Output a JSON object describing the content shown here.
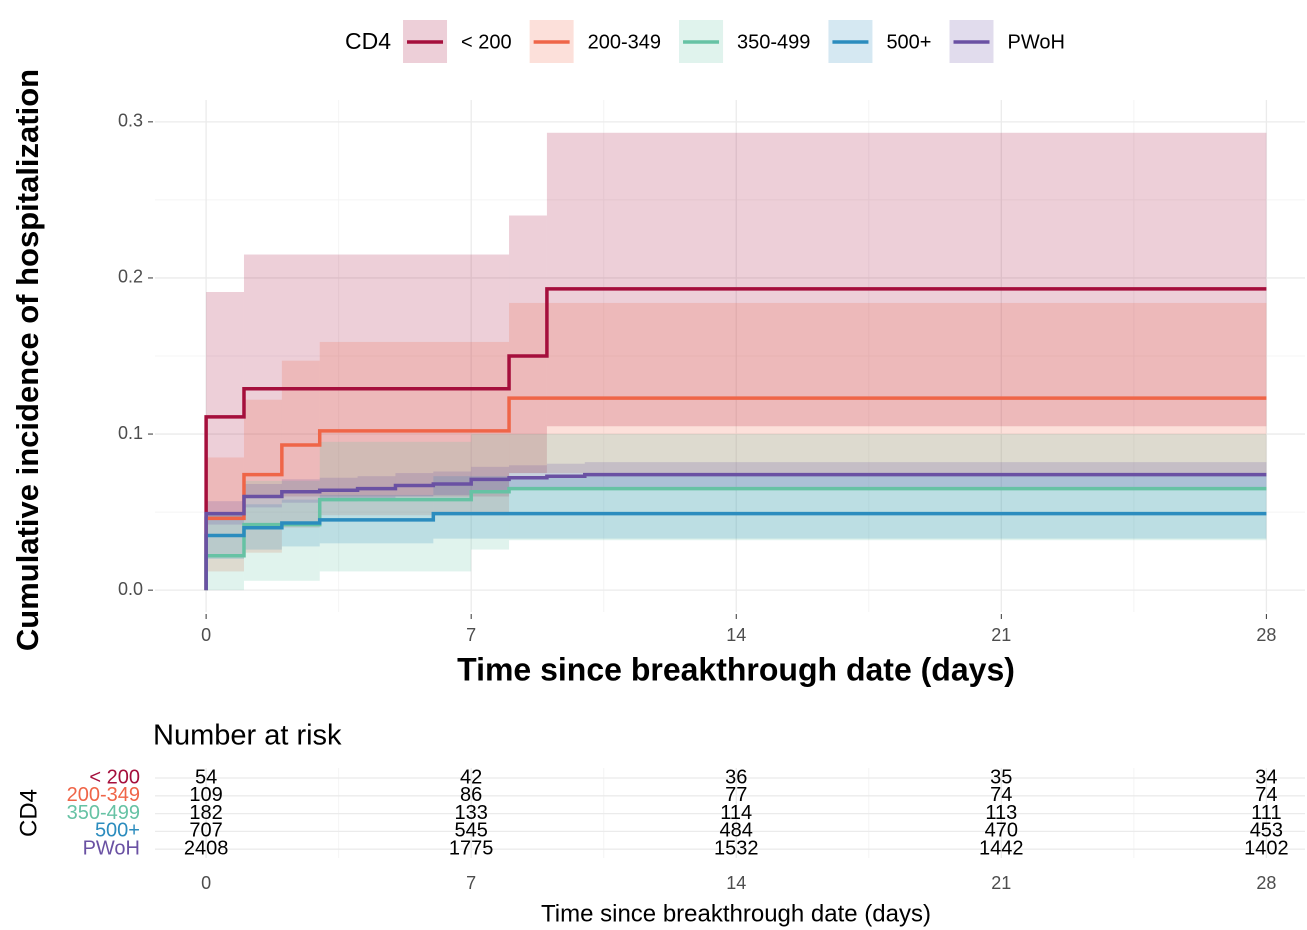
{
  "chart_data": [
    {
      "type": "step",
      "legend_title": "CD4",
      "y_label": "Cumulative incidence of hospitalization",
      "x_label": "Time since breakthrough date (days)",
      "xlim": [
        -1.35,
        29.02
      ],
      "ylim": [
        -0.014,
        0.314
      ],
      "xticks": [
        0,
        7,
        14,
        21,
        28
      ],
      "yticks": [
        {
          "value": 0,
          "label": "0.0"
        },
        0.1,
        0.2,
        0.3
      ],
      "grid": true,
      "series": [
        {
          "name": "< 200",
          "color": "#a50f3c",
          "x": [
            0,
            0,
            1,
            8,
            9,
            28
          ],
          "values": [
            0,
            0.111,
            0.129,
            0.15,
            0.193,
            0.193
          ],
          "lower": [
            0,
            0.045,
            0.06,
            0.075,
            0.105,
            0.105
          ],
          "upper": [
            0,
            0.191,
            0.215,
            0.24,
            0.293,
            0.293
          ]
        },
        {
          "name": "200-349",
          "color": "#ef6548",
          "x": [
            0,
            0,
            1,
            2,
            3,
            8,
            28
          ],
          "values": [
            0,
            0.046,
            0.074,
            0.093,
            0.102,
            0.123,
            0.123
          ],
          "lower": [
            0,
            0.012,
            0.024,
            0.04,
            0.048,
            0.075,
            0.075
          ],
          "upper": [
            0,
            0.085,
            0.122,
            0.147,
            0.159,
            0.184,
            0.184
          ]
        },
        {
          "name": "350-499",
          "color": "#66c2a4",
          "x": [
            0,
            0,
            1,
            3,
            7,
            8,
            28
          ],
          "values": [
            0,
            0.022,
            0.042,
            0.058,
            0.063,
            0.065,
            0.065
          ],
          "lower": [
            0,
            0.0,
            0.006,
            0.012,
            0.026,
            0.032,
            0.032
          ],
          "upper": [
            0,
            0.05,
            0.07,
            0.095,
            0.1,
            0.1,
            0.1
          ]
        },
        {
          "name": "500+",
          "color": "#2b8cbe",
          "x": [
            0,
            0,
            1,
            2,
            3,
            6,
            28
          ],
          "values": [
            0,
            0.035,
            0.04,
            0.043,
            0.045,
            0.049,
            0.049
          ],
          "lower": [
            0,
            0.02,
            0.026,
            0.028,
            0.03,
            0.033,
            0.033
          ],
          "upper": [
            0,
            0.048,
            0.055,
            0.058,
            0.061,
            0.073,
            0.073
          ]
        },
        {
          "name": "PWoH",
          "color": "#6a51a3",
          "x": [
            0,
            0,
            1,
            2,
            3,
            4,
            5,
            6,
            7,
            8,
            9,
            10,
            28
          ],
          "values": [
            0,
            0.049,
            0.06,
            0.063,
            0.064,
            0.065,
            0.067,
            0.068,
            0.071,
            0.072,
            0.073,
            0.074,
            0.074
          ],
          "lower": [
            0,
            0.042,
            0.053,
            0.056,
            0.057,
            0.058,
            0.06,
            0.061,
            0.064,
            0.065,
            0.066,
            0.066,
            0.066
          ],
          "upper": [
            0,
            0.057,
            0.068,
            0.071,
            0.072,
            0.073,
            0.075,
            0.076,
            0.079,
            0.08,
            0.081,
            0.082,
            0.082
          ]
        }
      ]
    },
    {
      "type": "table",
      "title": "Number at risk",
      "y_label": "CD4",
      "x_label": "Time since breakthrough date (days)",
      "xlim": [
        -1.35,
        29.02
      ],
      "xticks": [
        0,
        7,
        14,
        21,
        28
      ],
      "x": [
        0,
        7,
        14,
        21,
        28
      ],
      "series": [
        {
          "name": "< 200",
          "color": "#a50f3c",
          "values": [
            54,
            42,
            36,
            35,
            34
          ]
        },
        {
          "name": "200-349",
          "color": "#ef6548",
          "values": [
            109,
            86,
            77,
            74,
            74
          ]
        },
        {
          "name": "350-499",
          "color": "#66c2a4",
          "values": [
            182,
            133,
            114,
            113,
            111
          ]
        },
        {
          "name": "500+",
          "color": "#2b8cbe",
          "values": [
            707,
            545,
            484,
            470,
            453
          ]
        },
        {
          "name": "PWoH",
          "color": "#6a51a3",
          "values": [
            2408,
            1775,
            1532,
            1442,
            1402
          ]
        }
      ]
    }
  ]
}
